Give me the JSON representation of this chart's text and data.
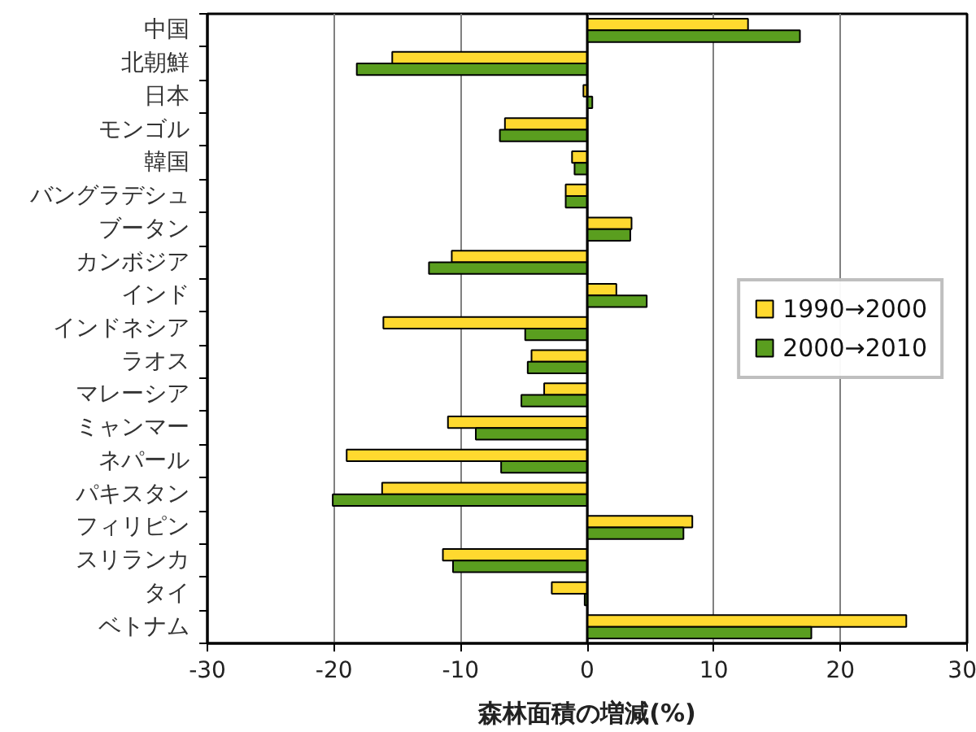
{
  "chart_data": {
    "type": "bar",
    "orientation": "horizontal",
    "xlabel": "森林面積の増減(%)",
    "categories": [
      "中国",
      "北朝鮮",
      "日本",
      "モンゴル",
      "韓国",
      "バングラデシュ",
      "ブータン",
      "カンボジア",
      "インド",
      "インドネシア",
      "ラオス",
      "マレーシア",
      "ミャンマー",
      "ネパール",
      "パキスタン",
      "フィリピン",
      "スリランカ",
      "タイ",
      "ベトナム"
    ],
    "series": [
      {
        "name": "1990→2000",
        "color": "#ffd92f",
        "values": [
          12.7,
          -15.4,
          -0.3,
          -6.5,
          -1.2,
          -1.7,
          3.5,
          -10.7,
          2.3,
          -16.1,
          -4.4,
          -3.4,
          -11.0,
          -19.0,
          -16.2,
          8.3,
          -11.4,
          -2.8,
          25.2
        ]
      },
      {
        "name": "2000→2010",
        "color": "#5a9e1f",
        "values": [
          16.8,
          -18.2,
          0.4,
          -6.9,
          -1.0,
          -1.7,
          3.4,
          -12.5,
          4.7,
          -4.9,
          -4.7,
          -5.2,
          -8.8,
          -6.8,
          -20.1,
          7.6,
          -10.6,
          -0.2,
          17.7
        ]
      }
    ],
    "xlim": [
      -30,
      30
    ],
    "xticks": [
      -30,
      -20,
      -10,
      0,
      10,
      20,
      30
    ],
    "grid": "x",
    "legend": "right"
  }
}
